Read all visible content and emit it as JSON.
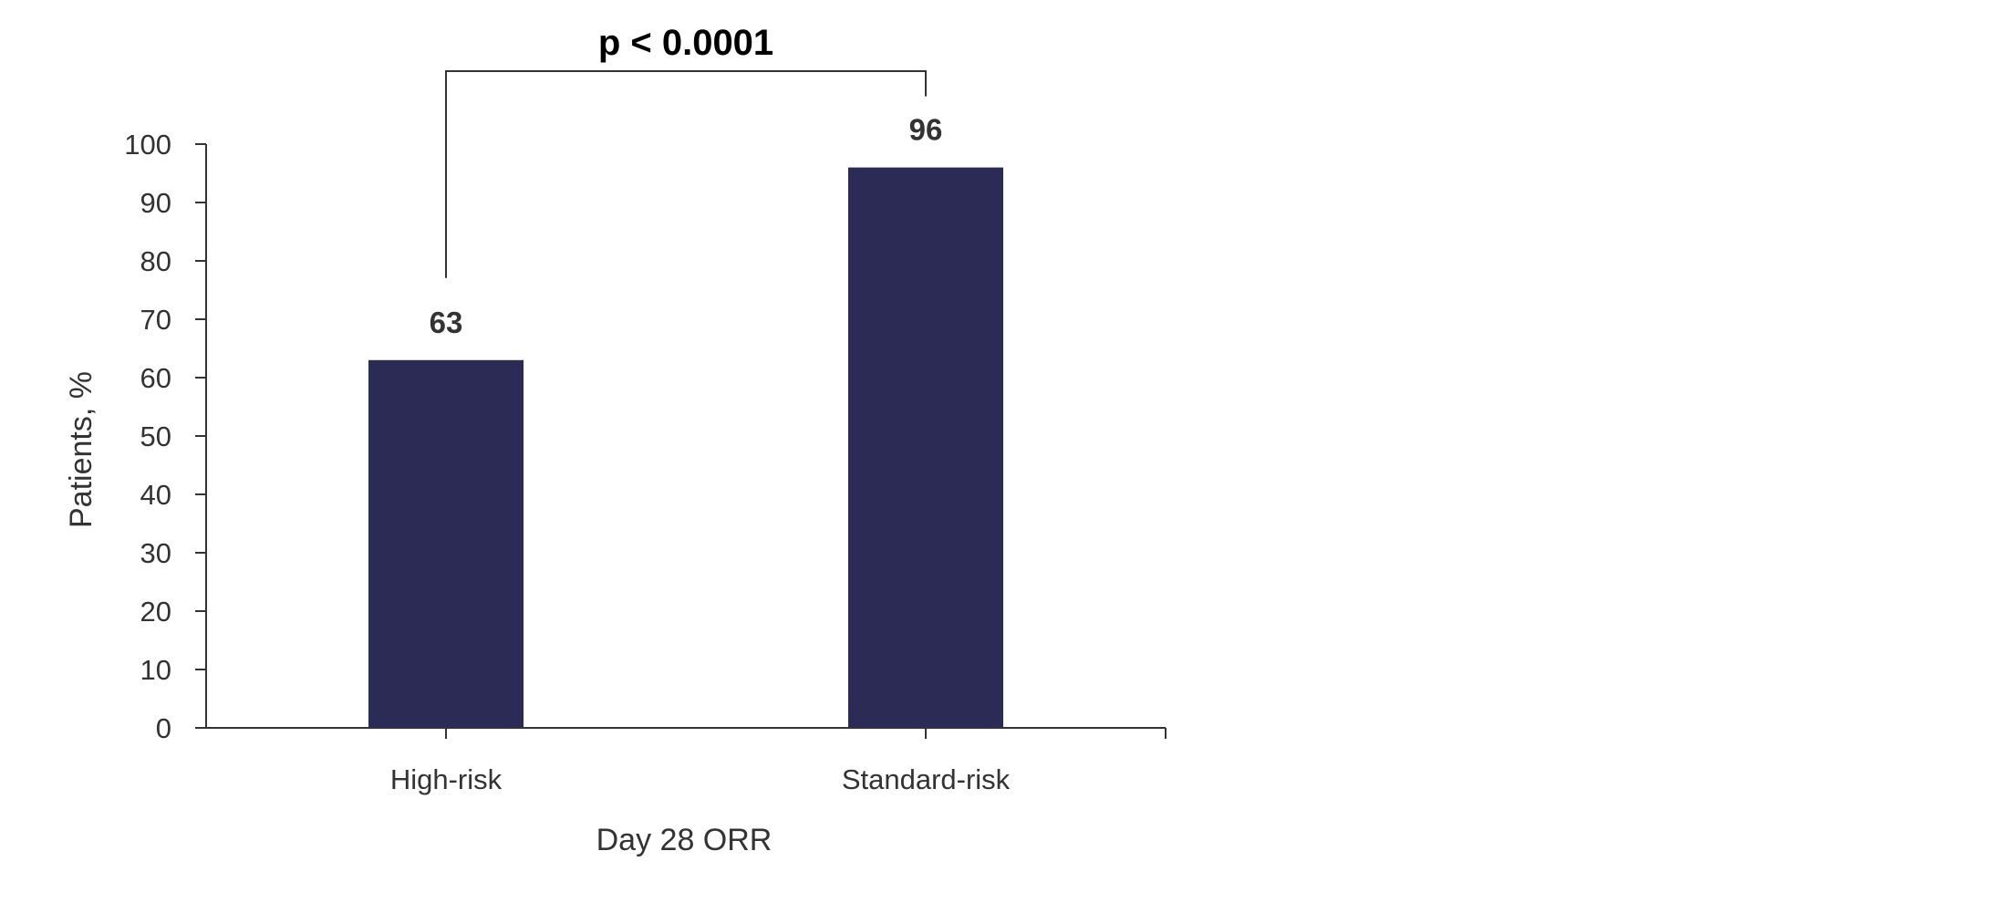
{
  "chart_data": {
    "type": "bar",
    "categories": [
      "High-risk",
      "Standard-risk"
    ],
    "values": [
      63,
      96
    ],
    "data_labels": [
      "63",
      "96"
    ],
    "xlabel": "Day 28 ORR",
    "ylabel": "Patients, %",
    "ylim": [
      0,
      100
    ],
    "yticks": [
      0,
      10,
      20,
      30,
      40,
      50,
      60,
      70,
      80,
      90,
      100
    ],
    "ytick_labels": [
      "0",
      "10",
      "20",
      "30",
      "40",
      "50",
      "60",
      "70",
      "80",
      "90",
      "100"
    ],
    "grid": false,
    "legend": "none",
    "bar_color": "#2b2b55",
    "annotation": {
      "text": "p < 0.0001",
      "between": [
        "High-risk",
        "Standard-risk"
      ]
    }
  }
}
